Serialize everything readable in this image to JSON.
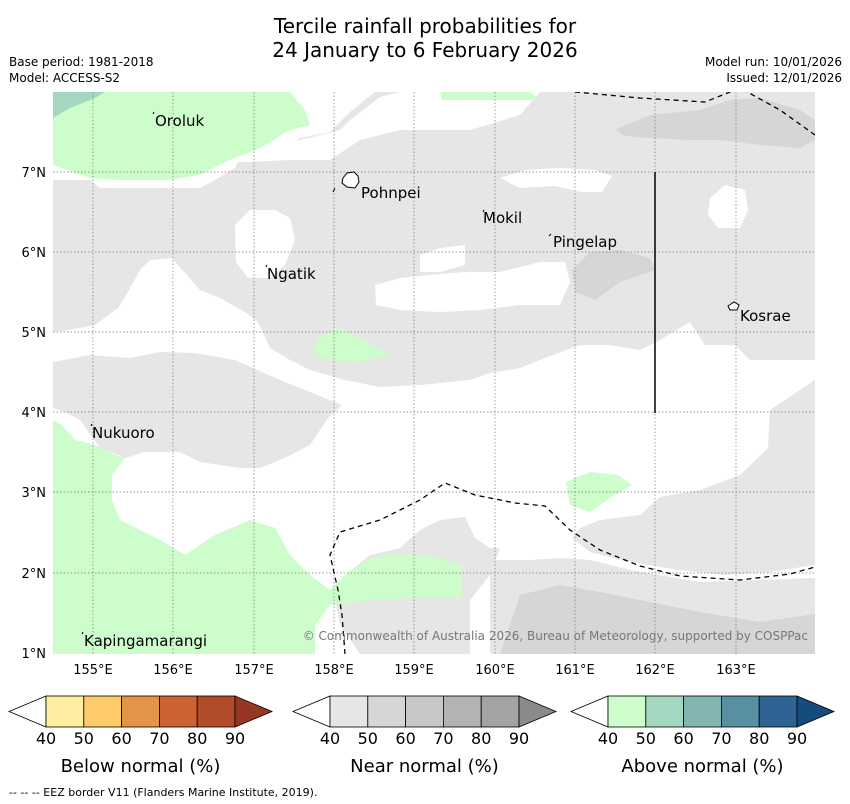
{
  "title": {
    "line1": "Tercile rainfall probabilities for",
    "line2": "24 January to 6 February 2026"
  },
  "meta": {
    "base_period": "Base period: 1981-2018",
    "model": "Model: ACCESS-S2",
    "model_run": "Model run: 10/01/2026",
    "issued": "Issued: 12/01/2026"
  },
  "map": {
    "lon_labels": [
      "155°E",
      "156°E",
      "157°E",
      "158°E",
      "159°E",
      "160°E",
      "161°E",
      "162°E",
      "163°E"
    ],
    "lat_labels": [
      "7°N",
      "6°N",
      "5°N",
      "4°N",
      "3°N",
      "2°N",
      "1°N"
    ],
    "places": [
      "Oroluk",
      "Pohnpei",
      "Mokil",
      "Pingelap",
      "Ngatik",
      "Kosrae",
      "Nukuoro",
      "Kapingamarangi"
    ],
    "copyright": "© Commonwealth of Australia 2026, Bureau of Meteorology, supported by COSPPac"
  },
  "legend": {
    "ticks": [
      "40",
      "50",
      "60",
      "70",
      "80",
      "90"
    ],
    "below_label": "Below normal (%)",
    "near_label": "Near normal (%)",
    "above_label": "Above normal (%)",
    "below_colors": [
      "#ffffff",
      "#feeea1",
      "#fecb6a",
      "#e2944b",
      "#cd6233",
      "#b24b2a",
      "#963722"
    ],
    "near_colors": [
      "#ffffff",
      "#e6e6e6",
      "#d6d6d6",
      "#c8c8c8",
      "#b3b3b3",
      "#a3a3a3",
      "#8a8a8a"
    ],
    "above_colors": [
      "#ffffff",
      "#ccfdcb",
      "#a3d7bf",
      "#82b6b1",
      "#5890a1",
      "#2f6393",
      "#154b7e"
    ]
  },
  "footnote": "--  --  -- EEZ border V11 (Flanders Marine Institute, 2019)."
}
